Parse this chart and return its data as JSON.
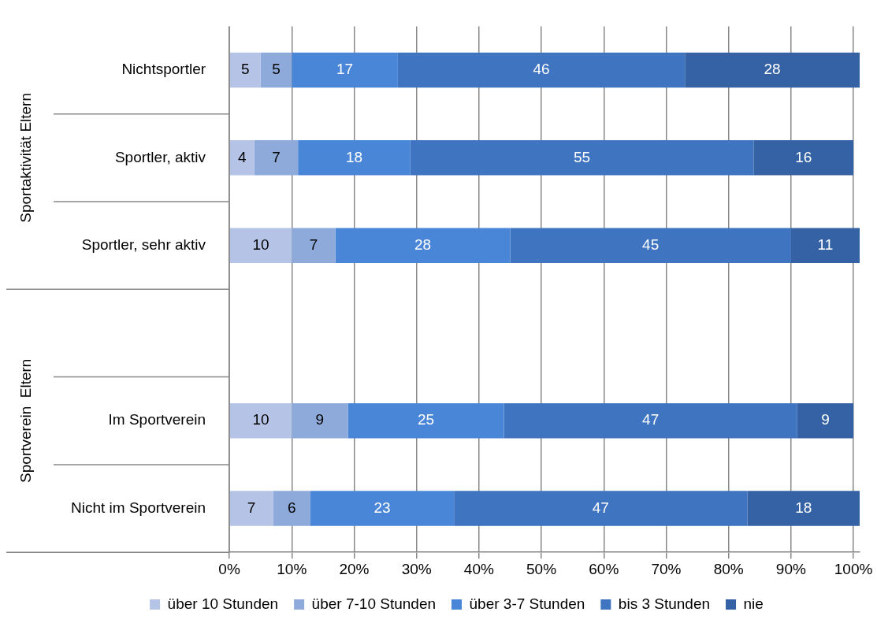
{
  "chart_data": {
    "type": "bar",
    "orientation": "horizontal",
    "stacked": true,
    "categories": [
      "Nichtsportler",
      "Sportler, aktiv",
      "Sportler, sehr aktiv",
      null,
      "Im Sportverein",
      "Nicht im Sportverein"
    ],
    "series": [
      {
        "name": "über 10 Stunden",
        "color": "#b4c3e6",
        "values": [
          5,
          4,
          10,
          null,
          10,
          7
        ]
      },
      {
        "name": "über 7-10 Stunden",
        "color": "#8eaadb",
        "values": [
          5,
          7,
          7,
          null,
          9,
          6
        ]
      },
      {
        "name": "über 3-7 Stunden",
        "color": "#4a86d8",
        "values": [
          17,
          18,
          28,
          null,
          25,
          23
        ]
      },
      {
        "name": "bis 3 Stunden",
        "color": "#3e74c0",
        "values": [
          46,
          55,
          45,
          null,
          47,
          47
        ]
      },
      {
        "name": "nie",
        "color": "#3462a4",
        "values": [
          28,
          16,
          11,
          null,
          9,
          18
        ]
      }
    ],
    "xlim": [
      0,
      101
    ],
    "xticks": [
      {
        "value": 0,
        "label": "0%"
      },
      {
        "value": 10,
        "label": "10%"
      },
      {
        "value": 20,
        "label": "20%"
      },
      {
        "value": 30,
        "label": "30%"
      },
      {
        "value": 40,
        "label": "40%"
      },
      {
        "value": 50,
        "label": "50%"
      },
      {
        "value": 60,
        "label": "60%"
      },
      {
        "value": 70,
        "label": "70%"
      },
      {
        "value": 80,
        "label": "80%"
      },
      {
        "value": 90,
        "label": "90%"
      },
      {
        "value": 100,
        "label": "100%"
      }
    ],
    "annotations": [
      "Sportaktivität Eltern",
      "Sportverein  Eltern"
    ],
    "grid": "x",
    "legend": "bottom",
    "data_labels": true
  }
}
